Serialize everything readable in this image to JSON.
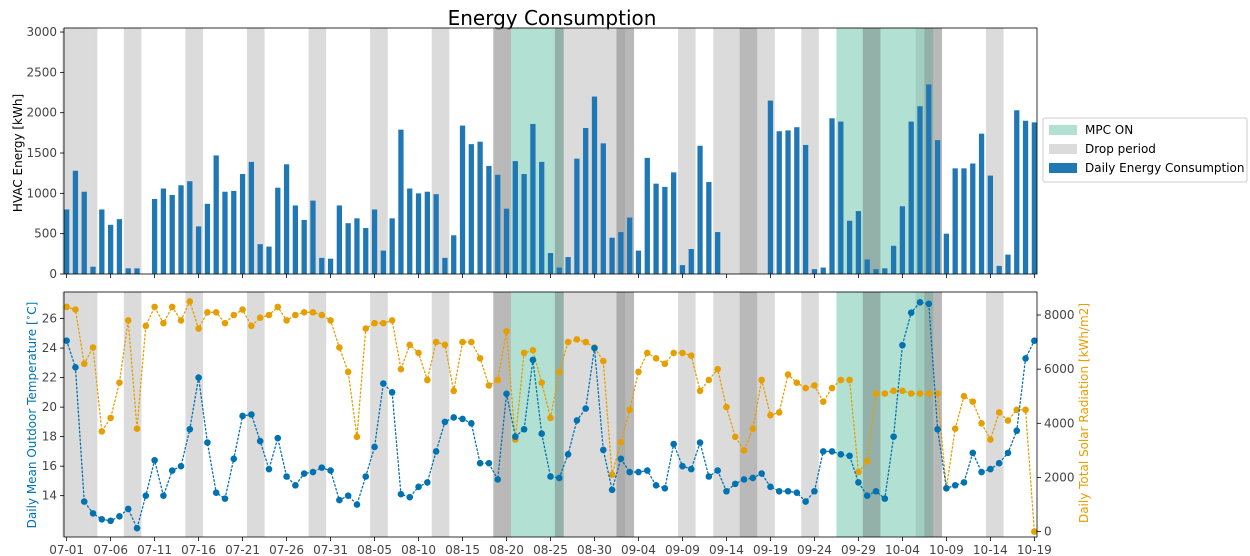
{
  "colors": {
    "bar": "#1f77b4",
    "mpc": "#66c2a5",
    "drop": "#b0b0b0",
    "temp": "#0072b2",
    "solar": "#e69f00",
    "tick_text": "#444444"
  },
  "chart_data": [
    {
      "type": "bar",
      "title": "Energy Consumption",
      "ylabel": "HVAC Energy [kWh]",
      "ylim": [
        0,
        3050
      ],
      "yticks": [
        0,
        500,
        1000,
        1500,
        2000,
        2500,
        3000
      ],
      "x_start": "07-01",
      "x_end": "10-19",
      "xticks": [
        "07-01",
        "07-06",
        "07-11",
        "07-16",
        "07-21",
        "07-26",
        "07-31",
        "08-05",
        "08-10",
        "08-15",
        "08-20",
        "08-25",
        "08-30",
        "09-04",
        "09-09",
        "09-14",
        "09-19",
        "09-24",
        "09-29",
        "10-04",
        "10-09",
        "10-14",
        "10-19"
      ],
      "legend": {
        "placement": "right",
        "entries": [
          "MPC ON",
          "Drop period",
          "Daily Energy Consumption"
        ]
      },
      "series": [
        {
          "name": "Daily Energy Consumption",
          "x": [
            "07-01",
            "07-02",
            "07-03",
            "07-04",
            "07-05",
            "07-06",
            "07-07",
            "07-08",
            "07-09",
            "07-10",
            "07-11",
            "07-12",
            "07-13",
            "07-14",
            "07-15",
            "07-16",
            "07-17",
            "07-18",
            "07-19",
            "07-20",
            "07-21",
            "07-22",
            "07-23",
            "07-24",
            "07-25",
            "07-26",
            "07-27",
            "07-28",
            "07-29",
            "07-30",
            "07-31",
            "08-01",
            "08-02",
            "08-03",
            "08-04",
            "08-05",
            "08-06",
            "08-07",
            "08-08",
            "08-09",
            "08-10",
            "08-11",
            "08-12",
            "08-13",
            "08-14",
            "08-15",
            "08-16",
            "08-17",
            "08-18",
            "08-19",
            "08-20",
            "08-21",
            "08-22",
            "08-23",
            "08-24",
            "08-25",
            "08-26",
            "08-27",
            "08-28",
            "08-29",
            "08-30",
            "08-31",
            "09-01",
            "09-02",
            "09-03",
            "09-04",
            "09-05",
            "09-06",
            "09-07",
            "09-08",
            "09-09",
            "09-10",
            "09-11",
            "09-12",
            "09-13",
            "09-19",
            "09-20",
            "09-21",
            "09-22",
            "09-23",
            "09-24",
            "09-25",
            "09-26",
            "09-27",
            "09-28",
            "09-29",
            "09-30",
            "10-01",
            "10-02",
            "10-03",
            "10-04",
            "10-05",
            "10-06",
            "10-07",
            "10-08",
            "10-09",
            "10-10",
            "10-11",
            "10-12",
            "10-13",
            "10-14",
            "10-15",
            "10-16",
            "10-17",
            "10-18",
            "10-19"
          ],
          "values": [
            800,
            1280,
            1020,
            90,
            800,
            610,
            680,
            70,
            70,
            0,
            930,
            1060,
            980,
            1100,
            1150,
            590,
            870,
            1470,
            1020,
            1030,
            1240,
            1390,
            370,
            340,
            1070,
            1360,
            850,
            670,
            910,
            200,
            190,
            850,
            630,
            690,
            570,
            800,
            290,
            690,
            1790,
            1060,
            1000,
            1020,
            990,
            200,
            480,
            1840,
            1610,
            1640,
            1340,
            1230,
            810,
            1400,
            1240,
            1860,
            1390,
            260,
            80,
            210,
            1430,
            1810,
            2200,
            1620,
            450,
            520,
            700,
            290,
            1440,
            1120,
            1080,
            1260,
            110,
            310,
            1590,
            1140,
            520,
            2150,
            1770,
            1780,
            1820,
            1600,
            60,
            80,
            1930,
            1890,
            660,
            780,
            180,
            60,
            70,
            350,
            840,
            1890,
            2080,
            2350,
            1660,
            500,
            1310,
            1310,
            1370,
            1740,
            1220,
            100,
            240,
            2030,
            1900,
            1880
          ]
        }
      ],
      "drop_periods": [
        [
          "07-01",
          "07-03"
        ],
        [
          "07-04",
          "07-04"
        ],
        [
          "07-08",
          "07-09"
        ],
        [
          "07-15",
          "07-16"
        ],
        [
          "07-22",
          "07-23"
        ],
        [
          "07-29",
          "07-30"
        ],
        [
          "08-05",
          "08-06"
        ],
        [
          "08-12",
          "08-13"
        ],
        [
          "08-19",
          "08-20"
        ],
        [
          "08-26",
          "08-26"
        ],
        [
          "08-27",
          "09-02"
        ],
        [
          "09-02",
          "09-03"
        ],
        [
          "09-09",
          "09-10"
        ],
        [
          "09-13",
          "09-15"
        ],
        [
          "09-16",
          "09-17"
        ],
        [
          "09-18",
          "09-19"
        ],
        [
          "09-23",
          "09-24"
        ],
        [
          "09-30",
          "10-01"
        ],
        [
          "10-06",
          "10-08"
        ],
        [
          "10-14",
          "10-15"
        ]
      ],
      "mpc_periods": [
        [
          "08-21",
          "08-26"
        ],
        [
          "09-27",
          "10-07"
        ]
      ],
      "dark_periods": [
        [
          "08-19",
          "08-20"
        ],
        [
          "08-26",
          "08-26"
        ],
        [
          "09-02",
          "09-03"
        ],
        [
          "09-16",
          "09-17"
        ],
        [
          "09-30",
          "10-01"
        ],
        [
          "10-07",
          "10-08"
        ]
      ]
    },
    {
      "type": "line",
      "ylabel_left": "Daily Mean Outdoor Temperature [$^\\circ$C]",
      "ylabel_right": "Daily Total Solar Radiation [kWh/m2]",
      "ylim_left": [
        11.2,
        27.8
      ],
      "yticks_left": [
        14,
        16,
        18,
        20,
        22,
        24,
        26
      ],
      "ylim_right": [
        -200,
        8850
      ],
      "yticks_right": [
        0,
        2000,
        4000,
        6000,
        8000
      ],
      "series": [
        {
          "name": "Daily Mean Outdoor Temperature",
          "axis": "left",
          "x": [
            "07-01",
            "07-02",
            "07-03",
            "07-04",
            "07-05",
            "07-06",
            "07-07",
            "07-08",
            "07-09",
            "07-10",
            "07-11",
            "07-12",
            "07-13",
            "07-14",
            "07-15",
            "07-16",
            "07-17",
            "07-18",
            "07-19",
            "07-20",
            "07-21",
            "07-22",
            "07-23",
            "07-24",
            "07-25",
            "07-26",
            "07-27",
            "07-28",
            "07-29",
            "07-30",
            "07-31",
            "08-01",
            "08-02",
            "08-03",
            "08-04",
            "08-05",
            "08-06",
            "08-07",
            "08-08",
            "08-09",
            "08-10",
            "08-11",
            "08-12",
            "08-13",
            "08-14",
            "08-15",
            "08-16",
            "08-17",
            "08-18",
            "08-19",
            "08-20",
            "08-21",
            "08-22",
            "08-23",
            "08-24",
            "08-25",
            "08-26",
            "08-27",
            "08-28",
            "08-29",
            "08-30",
            "08-31",
            "09-01",
            "09-02",
            "09-03",
            "09-04",
            "09-05",
            "09-06",
            "09-07",
            "09-08",
            "09-09",
            "09-10",
            "09-11",
            "09-12",
            "09-13",
            "09-14",
            "09-15",
            "09-16",
            "09-17",
            "09-18",
            "09-19",
            "09-20",
            "09-21",
            "09-22",
            "09-23",
            "09-24",
            "09-25",
            "09-26",
            "09-27",
            "09-28",
            "09-29",
            "09-30",
            "10-01",
            "10-02",
            "10-03",
            "10-04",
            "10-05",
            "10-06",
            "10-07",
            "10-08",
            "10-09",
            "10-10",
            "10-11",
            "10-12",
            "10-13",
            "10-14",
            "10-15",
            "10-16",
            "10-17",
            "10-18",
            "10-19"
          ],
          "values": [
            24.5,
            22.7,
            13.6,
            12.8,
            12.4,
            12.3,
            12.6,
            13.1,
            11.8,
            14.0,
            16.4,
            14.0,
            15.7,
            16.0,
            18.5,
            22.0,
            17.6,
            14.2,
            13.8,
            16.5,
            19.4,
            19.5,
            17.7,
            15.8,
            17.9,
            15.3,
            14.7,
            15.5,
            15.6,
            15.9,
            15.7,
            13.7,
            14.0,
            13.4,
            15.3,
            17.3,
            21.6,
            21.0,
            14.1,
            13.9,
            14.6,
            14.9,
            17.0,
            19.0,
            19.3,
            19.2,
            18.9,
            16.2,
            16.2,
            15.1,
            20.9,
            18.0,
            18.5,
            23.2,
            18.2,
            15.3,
            15.2,
            16.8,
            19.1,
            19.9,
            24.0,
            17.1,
            14.4,
            16.5,
            15.6,
            15.6,
            15.7,
            14.7,
            14.5,
            17.5,
            16.0,
            15.8,
            17.6,
            15.3,
            15.7,
            14.3,
            14.8,
            15.1,
            15.2,
            15.5,
            14.6,
            14.3,
            14.3,
            14.2,
            13.6,
            14.3,
            17.0,
            17.0,
            16.8,
            16.7,
            14.9,
            14.0,
            14.3,
            13.8,
            18.0,
            24.2,
            26.4,
            27.1,
            27.0,
            18.5,
            14.5,
            14.7,
            14.9,
            16.9,
            15.6,
            15.8,
            16.2,
            16.9,
            18.4,
            23.3,
            24.5
          ]
        },
        {
          "name": "Daily Total Solar Radiation",
          "axis": "right",
          "x": [
            "07-01",
            "07-02",
            "07-03",
            "07-04",
            "07-05",
            "07-06",
            "07-07",
            "07-08",
            "07-09",
            "07-10",
            "07-11",
            "07-12",
            "07-13",
            "07-14",
            "07-15",
            "07-16",
            "07-17",
            "07-18",
            "07-19",
            "07-20",
            "07-21",
            "07-22",
            "07-23",
            "07-24",
            "07-25",
            "07-26",
            "07-27",
            "07-28",
            "07-29",
            "07-30",
            "07-31",
            "08-01",
            "08-02",
            "08-03",
            "08-04",
            "08-05",
            "08-06",
            "08-07",
            "08-08",
            "08-09",
            "08-10",
            "08-11",
            "08-12",
            "08-13",
            "08-14",
            "08-15",
            "08-16",
            "08-17",
            "08-18",
            "08-19",
            "08-20",
            "08-21",
            "08-22",
            "08-23",
            "08-24",
            "08-25",
            "08-26",
            "08-27",
            "08-28",
            "08-29",
            "08-30",
            "08-31",
            "09-01",
            "09-02",
            "09-03",
            "09-04",
            "09-05",
            "09-06",
            "09-07",
            "09-08",
            "09-09",
            "09-10",
            "09-11",
            "09-12",
            "09-13",
            "09-14",
            "09-15",
            "09-16",
            "09-17",
            "09-18",
            "09-19",
            "09-20",
            "09-21",
            "09-22",
            "09-23",
            "09-24",
            "09-25",
            "09-26",
            "09-27",
            "09-28",
            "09-29",
            "09-30",
            "10-01",
            "10-02",
            "10-03",
            "10-04",
            "10-05",
            "10-06",
            "10-07",
            "10-08",
            "10-09",
            "10-10",
            "10-11",
            "10-12",
            "10-13",
            "10-14",
            "10-15",
            "10-16",
            "10-17",
            "10-18",
            "10-19"
          ],
          "values": [
            8300,
            8200,
            6200,
            6800,
            3700,
            4200,
            5500,
            7800,
            3800,
            7600,
            8300,
            7700,
            8300,
            7800,
            8500,
            7500,
            8100,
            8100,
            7700,
            8000,
            8200,
            7600,
            7900,
            8000,
            8300,
            7800,
            8000,
            8100,
            8100,
            8000,
            7800,
            6800,
            5900,
            3500,
            7500,
            7700,
            7700,
            7800,
            6000,
            6900,
            6600,
            5600,
            7000,
            6900,
            5200,
            7000,
            7000,
            6400,
            5400,
            5600,
            7400,
            3400,
            6600,
            6700,
            5500,
            4200,
            5900,
            7000,
            7100,
            7000,
            6800,
            6300,
            2100,
            3300,
            4500,
            5900,
            6600,
            6400,
            6200,
            6600,
            6600,
            6500,
            5200,
            5600,
            6000,
            4600,
            3500,
            3000,
            3800,
            5600,
            4300,
            4400,
            5800,
            5500,
            5300,
            5400,
            4800,
            5300,
            5600,
            5600,
            2200,
            2600,
            5100,
            5100,
            5200,
            5200,
            5100,
            5100,
            5100,
            5100,
            1600,
            3800,
            5000,
            4800,
            4000,
            3400,
            4400,
            4100,
            4500,
            4500,
            0
          ]
        }
      ]
    }
  ]
}
